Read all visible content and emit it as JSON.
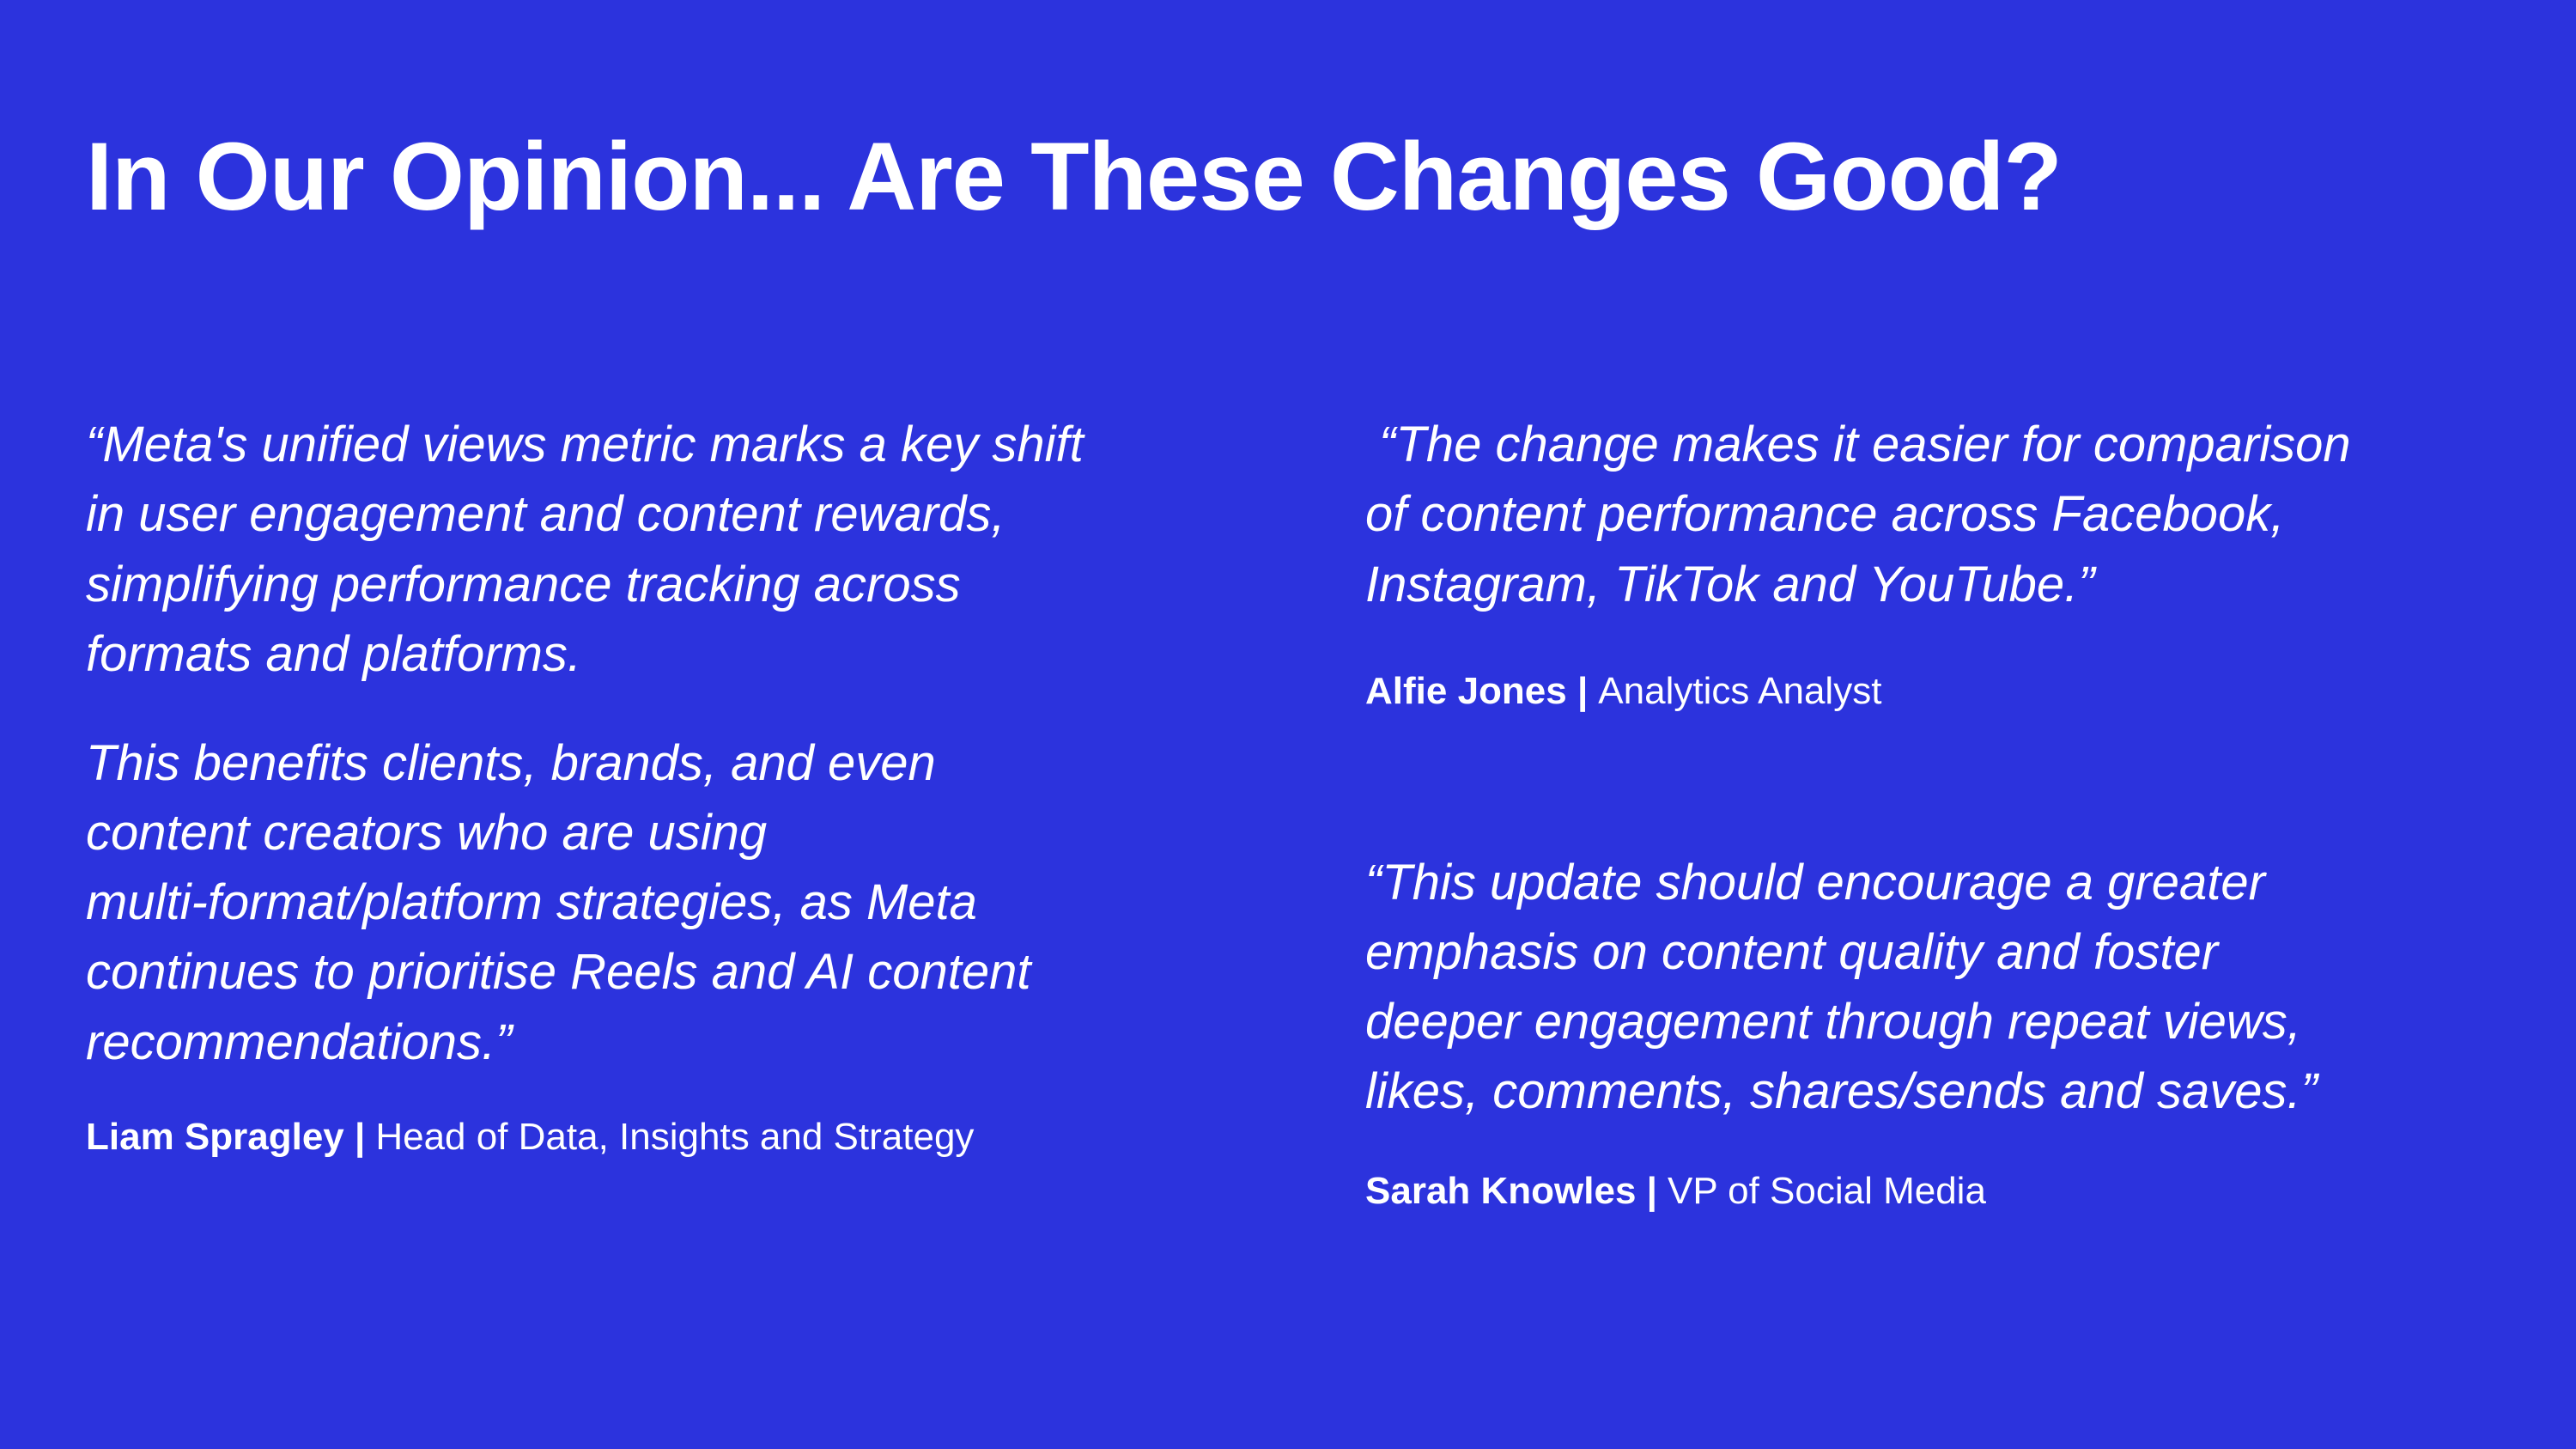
{
  "slide": {
    "background_color": "#2C33DD",
    "text_color": "#FFFFFF",
    "title": "In Our Opinion... Are These Changes Good?",
    "left_quote": {
      "paragraph_1": "“Meta's unified views metric marks a key shift\nin user engagement and content rewards,\nsimplifying performance tracking across\nformats and platforms.",
      "paragraph_2": "This benefits clients, brands, and even\ncontent creators who are using\nmulti-format/platform strategies, as Meta\ncontinues to prioritise Reels and AI content\nrecommendations.”",
      "author": "Liam Spragley |",
      "role": "Head of Data, Insights and Strategy"
    },
    "right_quotes": [
      {
        "text": " “The change makes it easier for comparison\nof content performance across Facebook,\nInstagram, TikTok and YouTube.”",
        "author": "Alfie Jones |",
        "role": "Analytics Analyst"
      },
      {
        "text": "“This update should encourage a greater\nemphasis on content quality and foster\ndeeper engagement through repeat views,\nlikes, comments, shares/sends and saves.”",
        "author": "Sarah Knowles |",
        "role": "VP of Social Media"
      }
    ]
  }
}
